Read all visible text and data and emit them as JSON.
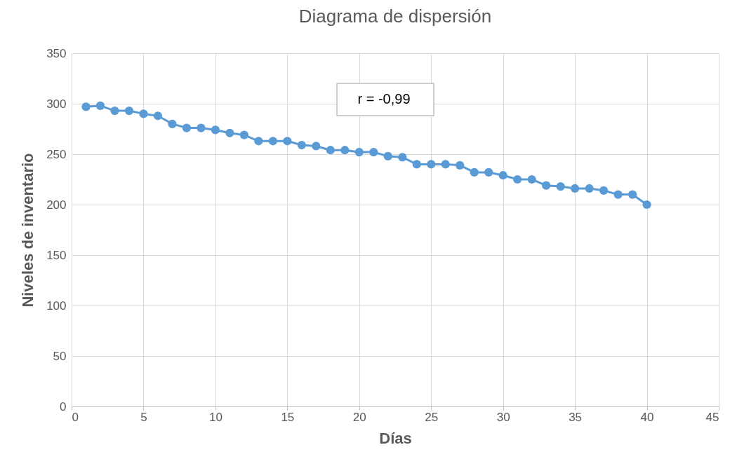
{
  "chart_data": {
    "type": "line",
    "title": "Diagrama de dispersión",
    "xlabel": "Días",
    "ylabel": "Niveles de inventario",
    "x": [
      1,
      2,
      3,
      4,
      5,
      6,
      7,
      8,
      9,
      10,
      11,
      12,
      13,
      14,
      15,
      16,
      17,
      18,
      19,
      20,
      21,
      22,
      23,
      24,
      25,
      26,
      27,
      28,
      29,
      30,
      31,
      32,
      33,
      34,
      35,
      36,
      37,
      38,
      39,
      40
    ],
    "series": [
      {
        "color": "#5b9bd5",
        "values": [
          297,
          298,
          293,
          293,
          290,
          288,
          280,
          276,
          276,
          274,
          271,
          269,
          263,
          263,
          263,
          259,
          258,
          254,
          254,
          252,
          252,
          248,
          247,
          240,
          240,
          240,
          239,
          232,
          232,
          229,
          225,
          225,
          219,
          218,
          216,
          216,
          214,
          210,
          210,
          200
        ]
      }
    ],
    "xlim": [
      0,
      45
    ],
    "xticks": [
      0,
      5,
      10,
      15,
      20,
      25,
      30,
      35,
      40,
      45
    ],
    "ylim": [
      0,
      350
    ],
    "yticks": [
      0,
      50,
      100,
      150,
      200,
      250,
      300,
      350
    ],
    "grid": true,
    "marker": "circle",
    "line_style": "solid",
    "legend": false,
    "annotations": [
      "r = -0,99"
    ]
  }
}
